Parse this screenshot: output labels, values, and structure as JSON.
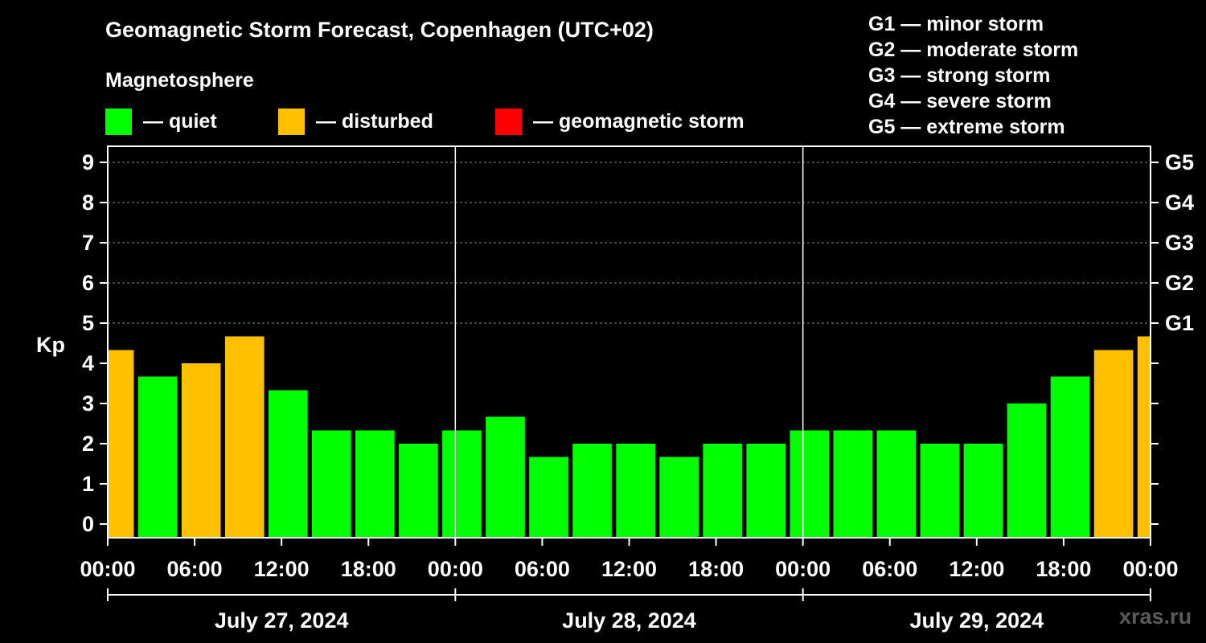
{
  "chart_data": {
    "type": "bar",
    "title": "Geomagnetic Storm Forecast, Copenhagen (UTC+02)",
    "subtitle": "Magnetosphere",
    "ylabel": "Kp",
    "ylim": [
      0,
      9
    ],
    "yticks": [
      "0",
      "1",
      "2",
      "3",
      "4",
      "5",
      "6",
      "7",
      "8",
      "9"
    ],
    "right_ticks": [
      {
        "kp": 5,
        "label": "G1"
      },
      {
        "kp": 6,
        "label": "G2"
      },
      {
        "kp": 7,
        "label": "G3"
      },
      {
        "kp": 8,
        "label": "G4"
      },
      {
        "kp": 9,
        "label": "G5"
      }
    ],
    "xlim_hours": [
      0,
      72
    ],
    "xticks": [
      {
        "hour": 0,
        "label": "00:00"
      },
      {
        "hour": 6,
        "label": "06:00"
      },
      {
        "hour": 12,
        "label": "12:00"
      },
      {
        "hour": 18,
        "label": "18:00"
      },
      {
        "hour": 24,
        "label": "00:00"
      },
      {
        "hour": 30,
        "label": "06:00"
      },
      {
        "hour": 36,
        "label": "12:00"
      },
      {
        "hour": 42,
        "label": "18:00"
      },
      {
        "hour": 48,
        "label": "00:00"
      },
      {
        "hour": 54,
        "label": "06:00"
      },
      {
        "hour": 60,
        "label": "12:00"
      },
      {
        "hour": 66,
        "label": "18:00"
      },
      {
        "hour": 72,
        "label": "00:00"
      }
    ],
    "days": [
      {
        "label": "July 27, 2024",
        "start_hour": 0,
        "end_hour": 24
      },
      {
        "label": "July 28, 2024",
        "start_hour": 24,
        "end_hour": 48
      },
      {
        "label": "July 29, 2024",
        "start_hour": 48,
        "end_hour": 72
      }
    ],
    "bars": [
      {
        "start_hour": 0,
        "end_hour": 1.8,
        "kp": 4.33,
        "status": "disturbed"
      },
      {
        "start_hour": 2.1,
        "end_hour": 4.8,
        "kp": 3.67,
        "status": "quiet"
      },
      {
        "start_hour": 5.1,
        "end_hour": 7.8,
        "kp": 4.0,
        "status": "disturbed"
      },
      {
        "start_hour": 8.1,
        "end_hour": 10.8,
        "kp": 4.67,
        "status": "disturbed"
      },
      {
        "start_hour": 11.1,
        "end_hour": 13.8,
        "kp": 3.33,
        "status": "quiet"
      },
      {
        "start_hour": 14.1,
        "end_hour": 16.8,
        "kp": 2.33,
        "status": "quiet"
      },
      {
        "start_hour": 17.1,
        "end_hour": 19.8,
        "kp": 2.33,
        "status": "quiet"
      },
      {
        "start_hour": 20.1,
        "end_hour": 22.8,
        "kp": 2.0,
        "status": "quiet"
      },
      {
        "start_hour": 23.1,
        "end_hour": 25.8,
        "kp": 2.33,
        "status": "quiet"
      },
      {
        "start_hour": 26.1,
        "end_hour": 28.8,
        "kp": 2.67,
        "status": "quiet"
      },
      {
        "start_hour": 29.1,
        "end_hour": 31.8,
        "kp": 1.67,
        "status": "quiet"
      },
      {
        "start_hour": 32.1,
        "end_hour": 34.8,
        "kp": 2.0,
        "status": "quiet"
      },
      {
        "start_hour": 35.1,
        "end_hour": 37.8,
        "kp": 2.0,
        "status": "quiet"
      },
      {
        "start_hour": 38.1,
        "end_hour": 40.8,
        "kp": 1.67,
        "status": "quiet"
      },
      {
        "start_hour": 41.1,
        "end_hour": 43.8,
        "kp": 2.0,
        "status": "quiet"
      },
      {
        "start_hour": 44.1,
        "end_hour": 46.8,
        "kp": 2.0,
        "status": "quiet"
      },
      {
        "start_hour": 47.1,
        "end_hour": 49.8,
        "kp": 2.33,
        "status": "quiet"
      },
      {
        "start_hour": 50.1,
        "end_hour": 52.8,
        "kp": 2.33,
        "status": "quiet"
      },
      {
        "start_hour": 53.1,
        "end_hour": 55.8,
        "kp": 2.33,
        "status": "quiet"
      },
      {
        "start_hour": 56.1,
        "end_hour": 58.8,
        "kp": 2.0,
        "status": "quiet"
      },
      {
        "start_hour": 59.1,
        "end_hour": 61.8,
        "kp": 2.0,
        "status": "quiet"
      },
      {
        "start_hour": 62.1,
        "end_hour": 64.8,
        "kp": 3.0,
        "status": "quiet"
      },
      {
        "start_hour": 65.1,
        "end_hour": 67.8,
        "kp": 3.67,
        "status": "quiet"
      },
      {
        "start_hour": 68.1,
        "end_hour": 70.8,
        "kp": 4.33,
        "status": "disturbed"
      },
      {
        "start_hour": 71.1,
        "end_hour": 72.0,
        "kp": 4.67,
        "status": "disturbed"
      }
    ]
  },
  "legend": {
    "items": [
      {
        "status": "quiet",
        "label": "— quiet"
      },
      {
        "status": "disturbed",
        "label": "— disturbed"
      },
      {
        "status": "storm",
        "label": "— geomagnetic storm"
      }
    ]
  },
  "colors": {
    "quiet": "#00ff00",
    "disturbed": "#ffc000",
    "storm": "#ff0000",
    "background": "#000000",
    "axis": "#ffffff",
    "grid": "#888888"
  },
  "storm_scale": [
    "G1 — minor storm",
    "G2 — moderate storm",
    "G3 — strong storm",
    "G4 — severe storm",
    "G5 — extreme storm"
  ],
  "watermark": "xras.ru"
}
